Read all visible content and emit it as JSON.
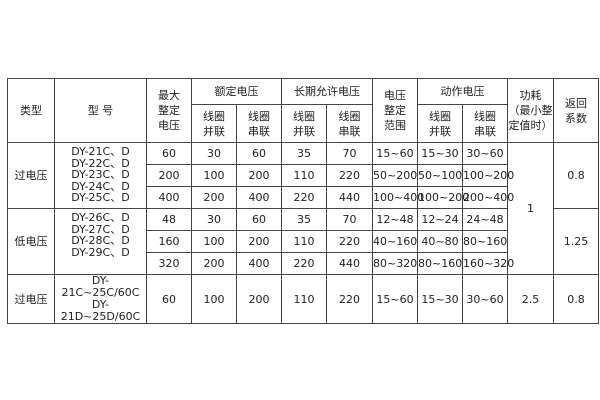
{
  "header": {
    "type": "类型",
    "model": "型 号",
    "max": "最大\n整定\n电压",
    "rated": "额定电压",
    "longterm": "长期允许电压",
    "range": "电压\n整定\n范围",
    "action": "动作电压",
    "power": "功耗\n（最小整\n定值时）",
    "ret": "返回\n系数",
    "parallel": "线圈\n并联",
    "series": "线圈\n串联"
  },
  "groups": [
    {
      "type": "过电压",
      "models": "DY-21C、D\nDY-22C、D\nDY-23C、D\nDY-24C、D\nDY-25C、D",
      "ret": "0.8",
      "rows": [
        [
          "60",
          "30",
          "60",
          "35",
          "70",
          "15~60",
          "15~30",
          "30~60"
        ],
        [
          "200",
          "100",
          "200",
          "110",
          "220",
          "50~200",
          "50~100",
          "100~200"
        ],
        [
          "400",
          "200",
          "400",
          "220",
          "440",
          "100~400",
          "100~200",
          "200~400"
        ]
      ]
    },
    {
      "type": "低电压",
      "models": "DY-26C、D\nDY-27C、D\nDY-28C、D\nDY-29C、D",
      "ret": "1.25",
      "rows": [
        [
          "48",
          "30",
          "60",
          "35",
          "70",
          "12~48",
          "12~24",
          "24~48"
        ],
        [
          "160",
          "100",
          "200",
          "110",
          "220",
          "40~160",
          "40~80",
          "80~160"
        ],
        [
          "320",
          "200",
          "400",
          "220",
          "440",
          "80~320",
          "80~160",
          "160~320"
        ]
      ]
    },
    {
      "type": "过电压",
      "models": "DY-21C~25C/60C\nDY-21D~25D/60C",
      "ret": "0.8",
      "power": "2.5",
      "rows": [
        [
          "60",
          "100",
          "200",
          "110",
          "220",
          "15~60",
          "15~30",
          "30~60"
        ]
      ]
    }
  ],
  "power_shared": "1"
}
